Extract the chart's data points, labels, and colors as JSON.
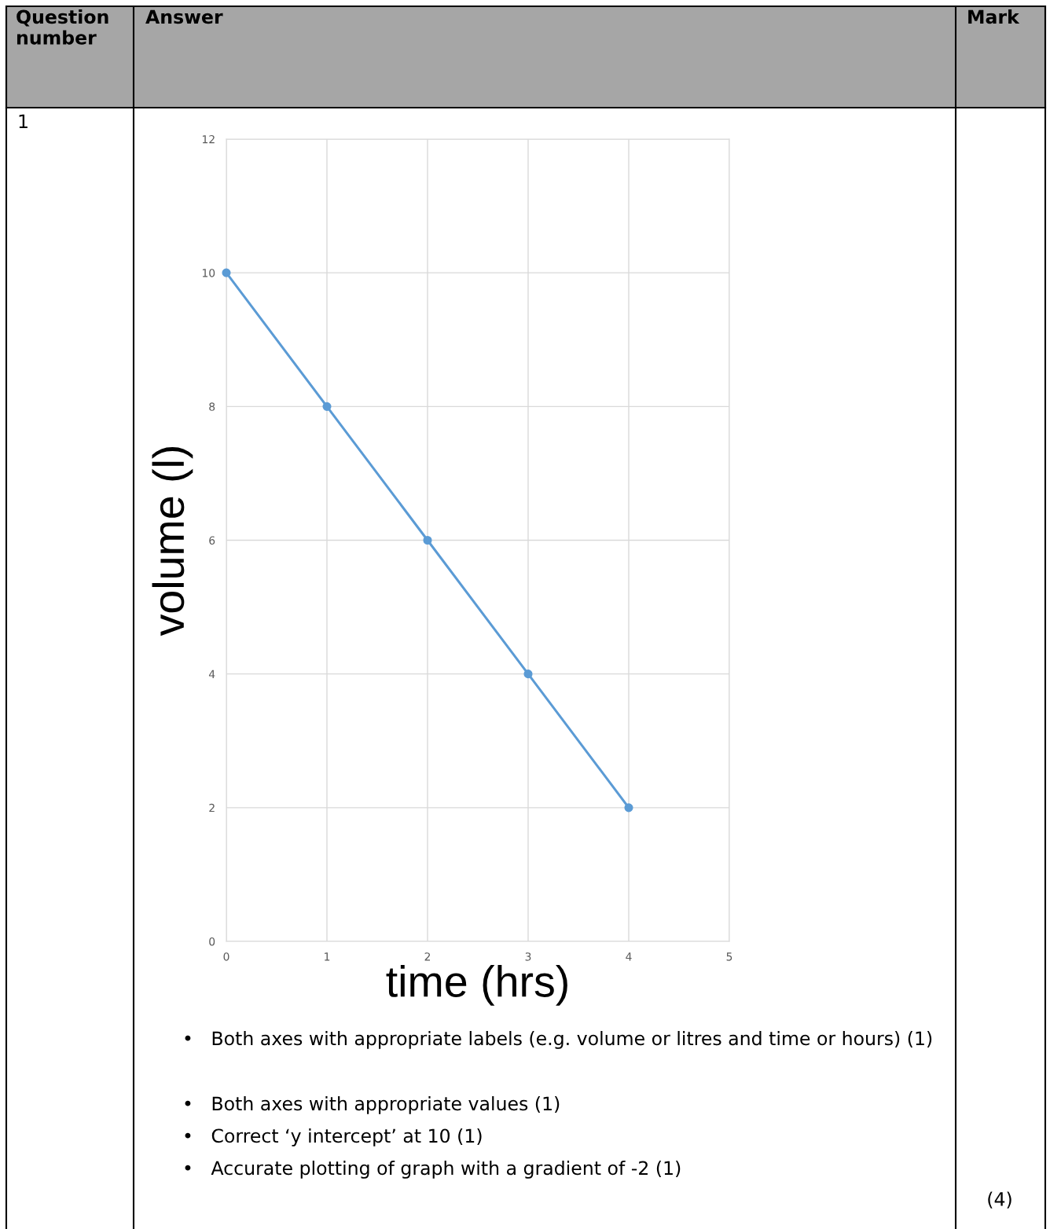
{
  "chart_data": {
    "type": "line",
    "xlabel": "time (hrs)",
    "ylabel": "volume (l)",
    "x": [
      0,
      1,
      2,
      3,
      4
    ],
    "series": [
      {
        "color": "#5b9bd5",
        "values": [
          10,
          8,
          6,
          4,
          2
        ]
      }
    ],
    "xlim": [
      0,
      5
    ],
    "xticks": [
      0,
      1,
      2,
      3,
      4,
      5
    ],
    "ylim": [
      0,
      12
    ],
    "yticks": [
      0,
      2,
      4,
      6,
      8,
      10,
      12
    ],
    "grid": true,
    "marker": "circle",
    "line_style": "solid",
    "legend": false,
    "annotations": [
      "Question number",
      "Answer",
      "Mark",
      "1",
      "•   Both axes with appropriate labels (e.g. volume or litres and time or hours) (1)",
      "•   Both axes with appropriate values (1)",
      "•   Correct ‘y intercept’ at 10 (1)",
      "•   Accurate plotting of graph with a gradient of -2 (1)",
      "(4)"
    ]
  }
}
